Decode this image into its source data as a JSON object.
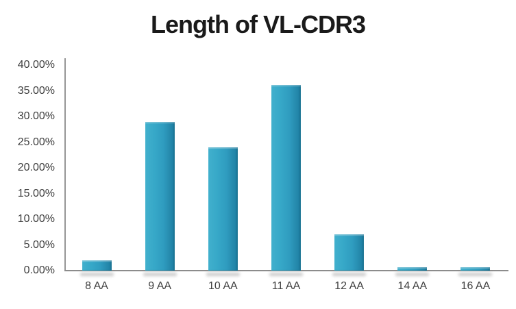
{
  "title": "Length of VL-CDR3",
  "colors": {
    "bar_main": "#35a6c6",
    "bar_light": "#41b0cd",
    "bar_dark": "#1c80a4",
    "axis": "#8c8c8c",
    "tick_label": "#3f3f3f",
    "title": "#1a1a1a",
    "background": "#ffffff"
  },
  "chart_data": {
    "type": "bar",
    "title": "Length of VL-CDR3",
    "categories": [
      "8 AA",
      "9 AA",
      "10 AA",
      "11 AA",
      "12 AA",
      "14 AA",
      "16 AA"
    ],
    "values": [
      2.0,
      29.0,
      24.0,
      36.2,
      7.1,
      0.7,
      0.7
    ],
    "xlabel": "",
    "ylabel": "",
    "ylim": [
      0,
      40
    ],
    "ytick_step": 5,
    "ytick_labels": [
      "0.00%",
      "5.00%",
      "10.00%",
      "15.00%",
      "20.00%",
      "25.00%",
      "30.00%",
      "35.00%",
      "40.00%"
    ],
    "grid": false,
    "legend": "none",
    "bar_color_hex": "#35a6c6"
  }
}
